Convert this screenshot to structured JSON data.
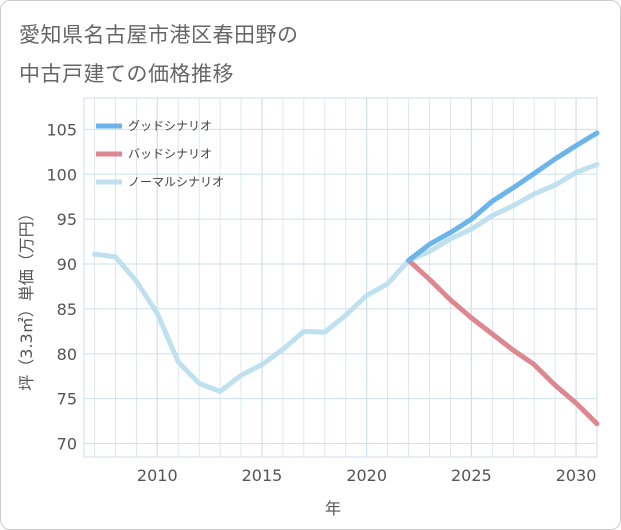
{
  "title_lines": [
    "愛知県名古屋市港区春田野の",
    "中古戸建ての価格推移"
  ],
  "colors": {
    "good": "#6cb5ea",
    "bad": "#dd8890",
    "normal": "#bfe1ef",
    "grid": "#d0dfe8",
    "frame_border": "#cccccc"
  },
  "chart_data": {
    "type": "line",
    "title": "愛知県名古屋市港区春田野の中古戸建ての価格推移",
    "xlabel": "年",
    "ylabel": "坪（3.3㎡）単価（万円）",
    "xlim": [
      2006.5,
      2031
    ],
    "ylim": [
      68.5,
      108.5
    ],
    "xticks": [
      2010,
      2015,
      2020,
      2025,
      2030
    ],
    "yticks": [
      70,
      75,
      80,
      85,
      90,
      95,
      100,
      105
    ],
    "grid": true,
    "legend_position": "top-left",
    "series": [
      {
        "name": "グッドシナリオ",
        "key": "good",
        "x": [
          2022,
          2023,
          2024,
          2025,
          2026,
          2027,
          2028,
          2029,
          2030,
          2031
        ],
        "y": [
          90.4,
          92.2,
          93.5,
          95.0,
          97.0,
          98.5,
          100.1,
          101.7,
          103.2,
          104.6
        ]
      },
      {
        "name": "バッドシナリオ",
        "key": "bad",
        "x": [
          2022,
          2023,
          2024,
          2025,
          2026,
          2027,
          2028,
          2029,
          2030,
          2031
        ],
        "y": [
          90.4,
          88.3,
          86.0,
          84.0,
          82.2,
          80.4,
          78.8,
          76.5,
          74.5,
          72.2
        ]
      },
      {
        "name": "ノーマルシナリオ",
        "key": "normal",
        "x": [
          2007,
          2008,
          2009,
          2010,
          2011,
          2012,
          2013,
          2014,
          2015,
          2016,
          2017,
          2018,
          2019,
          2020,
          2021,
          2022,
          2023,
          2024,
          2025,
          2026,
          2027,
          2028,
          2029,
          2030,
          2031
        ],
        "y": [
          91.1,
          90.8,
          88.1,
          84.5,
          79.1,
          76.7,
          75.8,
          77.6,
          78.8,
          80.5,
          82.5,
          82.4,
          84.3,
          86.5,
          87.8,
          90.4,
          91.4,
          92.8,
          93.9,
          95.4,
          96.5,
          97.8,
          98.8,
          100.2,
          101.1
        ]
      }
    ]
  }
}
